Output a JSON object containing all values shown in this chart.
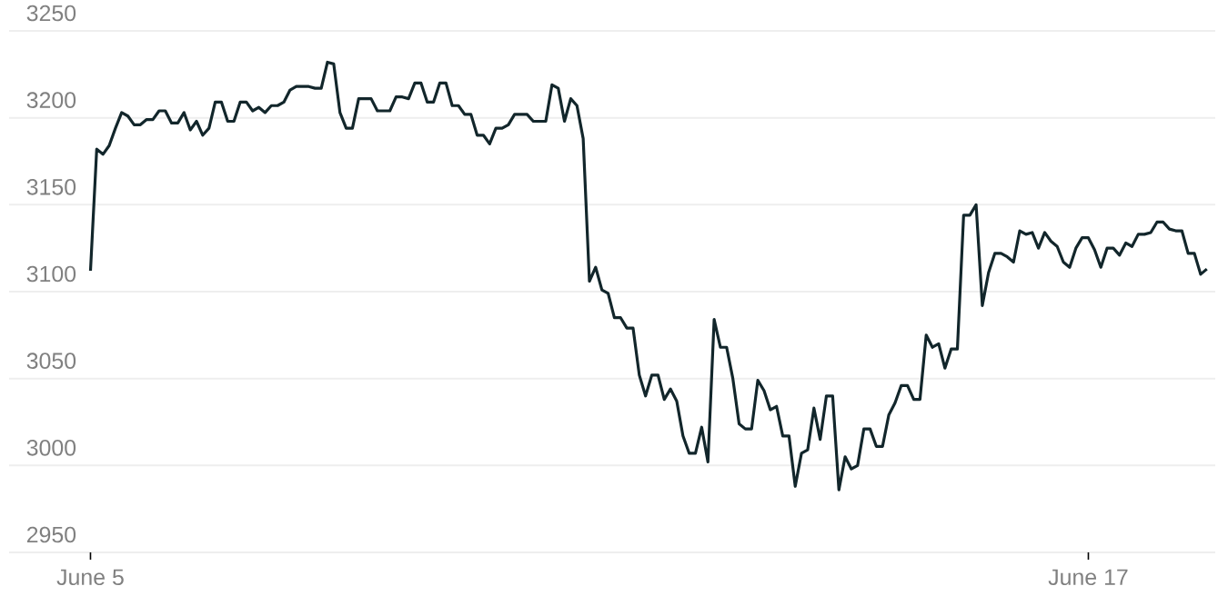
{
  "chart_data": {
    "type": "line",
    "color": "#12262b",
    "grid": "y",
    "marker": "none",
    "line_style": "solid",
    "ylim": [
      2950,
      3250
    ],
    "yticks": [
      2950,
      3000,
      3050,
      3100,
      3150,
      3200,
      3250
    ],
    "categories": [
      "June 5",
      null,
      null,
      null,
      null,
      null,
      null,
      null,
      null,
      null,
      null,
      null,
      null,
      null,
      null,
      null,
      null,
      null,
      null,
      null,
      null,
      null,
      null,
      null,
      null,
      null,
      null,
      null,
      null,
      null,
      null,
      null,
      null,
      null,
      null,
      null,
      null,
      null,
      null,
      null,
      null,
      null,
      null,
      null,
      null,
      null,
      null,
      null,
      null,
      null,
      null,
      null,
      null,
      null,
      null,
      null,
      null,
      null,
      null,
      null,
      null,
      null,
      null,
      null,
      null,
      null,
      null,
      null,
      null,
      null,
      null,
      null,
      null,
      null,
      null,
      null,
      null,
      null,
      null,
      null,
      null,
      null,
      null,
      null,
      null,
      null,
      null,
      null,
      null,
      null,
      null,
      null,
      null,
      null,
      null,
      null,
      null,
      null,
      null,
      null,
      null,
      null,
      null,
      null,
      null,
      null,
      null,
      null,
      null,
      null,
      null,
      null,
      null,
      null,
      null,
      null,
      null,
      null,
      null,
      null,
      null,
      null,
      null,
      null,
      null,
      null,
      null,
      null,
      null,
      null,
      null,
      null,
      null,
      null,
      null,
      null,
      null,
      null,
      null,
      null,
      null,
      null,
      null,
      null,
      null,
      null,
      null,
      null,
      null,
      null,
      null,
      null,
      null,
      null,
      null,
      null,
      null,
      null,
      null,
      null,
      "June 17",
      null,
      null,
      null,
      null,
      null,
      null,
      null,
      null,
      null,
      null,
      null,
      null,
      null,
      null,
      null,
      null,
      null,
      null,
      null
    ],
    "values": [
      3112,
      3182,
      3179,
      3184,
      3194,
      3203,
      3201,
      3196,
      3196,
      3199,
      3199,
      3204,
      3204,
      3197,
      3197,
      3203,
      3193,
      3198,
      3190,
      3194,
      3209,
      3209,
      3198,
      3198,
      3209,
      3209,
      3204,
      3206,
      3203,
      3207,
      3207,
      3209,
      3216,
      3218,
      3218,
      3218,
      3217,
      3217,
      3232,
      3231,
      3203,
      3194,
      3194,
      3211,
      3211,
      3211,
      3204,
      3204,
      3204,
      3212,
      3212,
      3211,
      3220,
      3220,
      3209,
      3209,
      3220,
      3220,
      3207,
      3207,
      3202,
      3202,
      3190,
      3190,
      3185,
      3194,
      3194,
      3196,
      3202,
      3202,
      3202,
      3198,
      3198,
      3198,
      3219,
      3217,
      3198,
      3211,
      3207,
      3188,
      3106,
      3114,
      3101,
      3099,
      3085,
      3085,
      3079,
      3079,
      3052,
      3040,
      3052,
      3052,
      3038,
      3044,
      3037,
      3017,
      3007,
      3007,
      3022,
      3002,
      3084,
      3068,
      3068,
      3050,
      3024,
      3021,
      3021,
      3049,
      3043,
      3032,
      3034,
      3017,
      3017,
      2988,
      3007,
      3009,
      3033,
      3015,
      3040,
      3040,
      2986,
      3005,
      2998,
      3000,
      3021,
      3021,
      3011,
      3011,
      3029,
      3036,
      3046,
      3046,
      3038,
      3038,
      3075,
      3068,
      3070,
      3056,
      3067,
      3067,
      3144,
      3144,
      3150,
      3092,
      3111,
      3122,
      3122,
      3120,
      3117,
      3135,
      3133,
      3134,
      3125,
      3134,
      3129,
      3126,
      3117,
      3114,
      3125,
      3131,
      3131,
      3124,
      3114,
      3125,
      3125,
      3121,
      3128,
      3126,
      3133,
      3133,
      3134,
      3140,
      3140,
      3136,
      3135,
      3135,
      3122,
      3122,
      3110,
      3113
    ]
  }
}
